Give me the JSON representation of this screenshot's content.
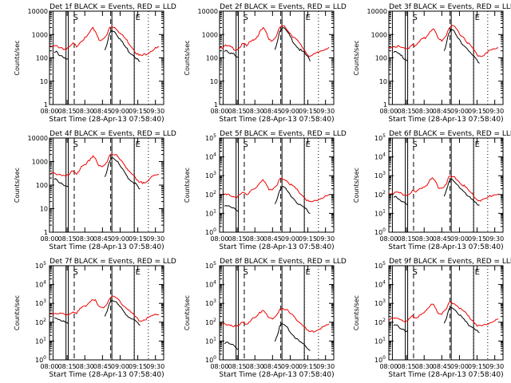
{
  "chart_data": [
    {
      "type": "line",
      "title": "Det 1f BLACK = Events, RED = LLD",
      "ylabel": "Counts/sec",
      "xlabel": "Start Time (28-Apr-13 07:58:40)",
      "yscale": "log",
      "ylim": [
        1,
        10000
      ],
      "ytick_labels": [
        "1",
        "10",
        "100",
        "1000",
        "10000"
      ],
      "xlim": [
        "08:00",
        "09:37"
      ],
      "xtick_labels": [
        "08:00",
        "08:15",
        "08:30",
        "08:45",
        "09:00",
        "09:15",
        "09:30"
      ],
      "overlay_labels": [
        "S",
        "E"
      ],
      "series": []
    },
    {
      "type": "line",
      "title": "Det 2f BLACK = Events, RED = LLD",
      "ylabel": "Counts/sec",
      "xlabel": "Start Time (28-Apr-13 07:58:40)",
      "yscale": "log",
      "ylim": [
        1,
        10000
      ],
      "ytick_labels": [
        "1",
        "10",
        "100",
        "1000",
        "10000"
      ],
      "xlim": [
        "08:00",
        "09:37"
      ],
      "xtick_labels": [
        "08:00",
        "08:15",
        "08:30",
        "08:45",
        "09:00",
        "09:15",
        "09:30"
      ],
      "overlay_labels": [
        "S",
        "E"
      ],
      "series": []
    },
    {
      "type": "line",
      "title": "Det 3f BLACK = Events, RED = LLD",
      "ylabel": "Counts/sec",
      "xlabel": "Start Time (28-Apr-13 07:58:40)",
      "yscale": "log",
      "ylim": [
        1,
        10000
      ],
      "ytick_labels": [
        "1",
        "10",
        "100",
        "1000",
        "10000"
      ],
      "xlim": [
        "08:00",
        "09:37"
      ],
      "xtick_labels": [
        "08:00",
        "08:15",
        "08:30",
        "08:45",
        "09:00",
        "09:15",
        "09:30"
      ],
      "overlay_labels": [
        "S",
        "E"
      ],
      "series": []
    },
    {
      "type": "line",
      "title": "Det 4f BLACK = Events, RED = LLD",
      "ylabel": "Counts/sec",
      "xlabel": "Start Time (28-Apr-13 07:58:40)",
      "yscale": "log",
      "ylim": [
        1,
        10000
      ],
      "ytick_labels": [
        "1",
        "10",
        "100",
        "1000",
        "10000"
      ],
      "xlim": [
        "08:00",
        "09:37"
      ],
      "xtick_labels": [
        "08:00",
        "08:15",
        "08:30",
        "08:45",
        "09:00",
        "09:15",
        "09:30"
      ],
      "overlay_labels": [
        "S",
        "E"
      ],
      "series": []
    },
    {
      "type": "line",
      "title": "Det 5f BLACK = Events, RED = LLD",
      "ylabel": "Counts/sec",
      "xlabel": "Start Time (28-Apr-13 07:58:40)",
      "yscale": "log",
      "ylim": [
        1,
        100000
      ],
      "ytick_labels": [
        "10^0",
        "10^1",
        "10^2",
        "10^3",
        "10^4",
        "10^5"
      ],
      "xlim": [
        "08:00",
        "09:37"
      ],
      "xtick_labels": [
        "08:00",
        "08:15",
        "08:30",
        "08:45",
        "09:00",
        "09:15",
        "09:30"
      ],
      "overlay_labels": [
        "S",
        "E"
      ],
      "series": []
    },
    {
      "type": "line",
      "title": "Det 6f BLACK = Events, RED = LLD",
      "ylabel": "Counts/sec",
      "xlabel": "Start Time (28-Apr-13 07:58:40)",
      "yscale": "log",
      "ylim": [
        1,
        100000
      ],
      "ytick_labels": [
        "10^0",
        "10^1",
        "10^2",
        "10^3",
        "10^4",
        "10^5"
      ],
      "xlim": [
        "08:00",
        "09:37"
      ],
      "xtick_labels": [
        "08:00",
        "08:15",
        "08:30",
        "08:45",
        "09:00",
        "09:15",
        "09:30"
      ],
      "overlay_labels": [
        "S",
        "E"
      ],
      "series": []
    },
    {
      "type": "line",
      "title": "Det 7f BLACK = Events, RED = LLD",
      "ylabel": "Counts/sec",
      "xlabel": "Start Time (28-Apr-13 07:58:40)",
      "yscale": "log",
      "ylim": [
        1,
        100000
      ],
      "ytick_labels": [
        "10^0",
        "10^1",
        "10^2",
        "10^3",
        "10^4",
        "10^5"
      ],
      "xlim": [
        "08:00",
        "09:37"
      ],
      "xtick_labels": [
        "08:00",
        "08:15",
        "08:30",
        "08:45",
        "09:00",
        "09:15",
        "09:30"
      ],
      "overlay_labels": [
        "S",
        "E"
      ],
      "series": []
    },
    {
      "type": "line",
      "title": "Det 8f BLACK = Events, RED = LLD",
      "ylabel": "Counts/sec",
      "xlabel": "Start Time (28-Apr-13 07:58:40)",
      "yscale": "log",
      "ylim": [
        1,
        100000
      ],
      "ytick_labels": [
        "10^0",
        "10^1",
        "10^2",
        "10^3",
        "10^4",
        "10^5"
      ],
      "xlim": [
        "08:00",
        "09:37"
      ],
      "xtick_labels": [
        "08:00",
        "08:15",
        "08:30",
        "08:45",
        "09:00",
        "09:15",
        "09:30"
      ],
      "overlay_labels": [
        "S",
        "E"
      ],
      "series": []
    },
    {
      "type": "line",
      "title": "Det 9f BLACK = Events, RED = LLD",
      "ylabel": "Counts/sec",
      "xlabel": "Start Time (28-Apr-13 07:58:40)",
      "yscale": "log",
      "ylim": [
        1,
        100000
      ],
      "ytick_labels": [
        "10^0",
        "10^1",
        "10^2",
        "10^3",
        "10^4",
        "10^5"
      ],
      "xlim": [
        "08:00",
        "09:37"
      ],
      "xtick_labels": [
        "08:00",
        "08:15",
        "08:30",
        "08:45",
        "09:00",
        "09:15",
        "09:30"
      ],
      "overlay_labels": [
        "S",
        "E"
      ],
      "series": []
    }
  ],
  "vlines": {
    "solid": [
      "08:03",
      "08:14",
      "08:16",
      "08:53",
      "09:12"
    ],
    "dashed": [
      "08:21",
      "08:52"
    ],
    "dotted": [
      "09:12",
      "09:24"
    ]
  },
  "colors": {
    "events": "#000000",
    "lld": "#ee0000",
    "axes": "#000000",
    "background": "#ffffff"
  }
}
